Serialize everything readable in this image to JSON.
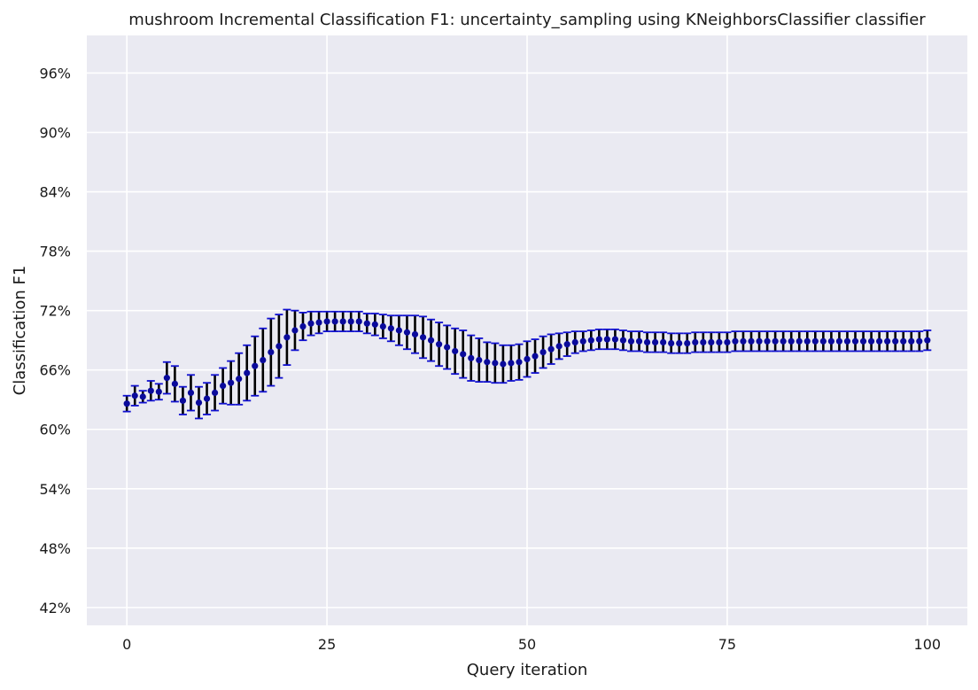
{
  "chart_data": {
    "type": "scatter",
    "title": "mushroom Incremental Classification F1: uncertainty_sampling using KNeighborsClassifier classifier",
    "xlabel": "Query iteration",
    "ylabel": "Classification F1",
    "xlim": [
      -5,
      105
    ],
    "ylim": [
      40.2,
      99.8
    ],
    "x_ticks": [
      0,
      25,
      50,
      75,
      100
    ],
    "x_tick_labels": [
      "0",
      "25",
      "50",
      "75",
      "100"
    ],
    "y_ticks": [
      42,
      48,
      54,
      60,
      66,
      72,
      78,
      84,
      90,
      96
    ],
    "y_tick_labels": [
      "42%",
      "48%",
      "54%",
      "60%",
      "66%",
      "72%",
      "78%",
      "84%",
      "90%",
      "96%"
    ],
    "grid": true,
    "legend": "none",
    "colors": {
      "background": "#eaeaf2",
      "grid": "#ffffff",
      "marker": "#0a0a9c",
      "error_bar": "#000000",
      "cap": "#1010d0"
    },
    "series": [
      {
        "x": [
          0,
          1,
          2,
          3,
          4,
          5,
          6,
          7,
          8,
          9,
          10,
          11,
          12,
          13,
          14,
          15,
          16,
          17,
          18,
          19,
          20,
          21,
          22,
          23,
          24,
          25,
          26,
          27,
          28,
          29,
          30,
          31,
          32,
          33,
          34,
          35,
          36,
          37,
          38,
          39,
          40,
          41,
          42,
          43,
          44,
          45,
          46,
          47,
          48,
          49,
          50,
          51,
          52,
          53,
          54,
          55,
          56,
          57,
          58,
          59,
          60,
          61,
          62,
          63,
          64,
          65,
          66,
          67,
          68,
          69,
          70,
          71,
          72,
          73,
          74,
          75,
          76,
          77,
          78,
          79,
          80,
          81,
          82,
          83,
          84,
          85,
          86,
          87,
          88,
          89,
          90,
          91,
          92,
          93,
          94,
          95,
          96,
          97,
          98,
          99,
          100
        ],
        "y": [
          62.6,
          63.4,
          63.3,
          63.9,
          63.8,
          65.2,
          64.6,
          62.9,
          63.7,
          62.7,
          63.1,
          63.7,
          64.4,
          64.7,
          65.1,
          65.7,
          66.4,
          67.0,
          67.8,
          68.4,
          69.3,
          70.0,
          70.4,
          70.7,
          70.8,
          70.9,
          70.9,
          70.9,
          70.9,
          70.9,
          70.7,
          70.6,
          70.4,
          70.2,
          70.0,
          69.8,
          69.6,
          69.3,
          69.0,
          68.6,
          68.3,
          67.9,
          67.6,
          67.2,
          67.0,
          66.8,
          66.7,
          66.6,
          66.7,
          66.8,
          67.1,
          67.4,
          67.8,
          68.1,
          68.4,
          68.6,
          68.8,
          68.9,
          69.0,
          69.1,
          69.1,
          69.1,
          69.0,
          68.9,
          68.9,
          68.8,
          68.8,
          68.8,
          68.7,
          68.7,
          68.7,
          68.8,
          68.8,
          68.8,
          68.8,
          68.8,
          68.9,
          68.9,
          68.9,
          68.9,
          68.9,
          68.9,
          68.9,
          68.9,
          68.9,
          68.9,
          68.9,
          68.9,
          68.9,
          68.9,
          68.9,
          68.9,
          68.9,
          68.9,
          68.9,
          68.9,
          68.9,
          68.9,
          68.9,
          68.9,
          69.0
        ],
        "error": [
          0.8,
          1.0,
          0.6,
          1.0,
          0.8,
          1.6,
          1.8,
          1.4,
          1.8,
          1.6,
          1.6,
          1.8,
          1.8,
          2.2,
          2.6,
          2.8,
          3.0,
          3.2,
          3.4,
          3.2,
          2.8,
          2.0,
          1.4,
          1.2,
          1.1,
          1.0,
          1.0,
          1.0,
          1.0,
          1.0,
          1.0,
          1.1,
          1.2,
          1.3,
          1.5,
          1.7,
          1.9,
          2.1,
          2.1,
          2.2,
          2.2,
          2.3,
          2.4,
          2.3,
          2.2,
          2.0,
          2.0,
          1.9,
          1.8,
          1.8,
          1.8,
          1.7,
          1.6,
          1.5,
          1.3,
          1.2,
          1.1,
          1.0,
          1.0,
          1.0,
          1.0,
          1.0,
          1.0,
          1.0,
          1.0,
          1.0,
          1.0,
          1.0,
          1.0,
          1.0,
          1.0,
          1.0,
          1.0,
          1.0,
          1.0,
          1.0,
          1.0,
          1.0,
          1.0,
          1.0,
          1.0,
          1.0,
          1.0,
          1.0,
          1.0,
          1.0,
          1.0,
          1.0,
          1.0,
          1.0,
          1.0,
          1.0,
          1.0,
          1.0,
          1.0,
          1.0,
          1.0,
          1.0,
          1.0,
          1.0,
          1.0
        ]
      }
    ]
  }
}
